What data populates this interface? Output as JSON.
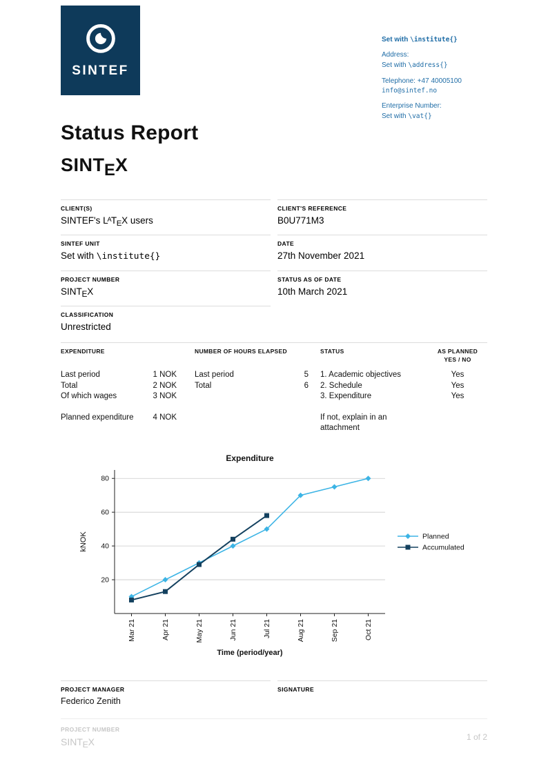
{
  "header": {
    "logo_text": "SINTEF",
    "contact": {
      "institute_pre": "Set with ",
      "institute_mono": "\\institute{}",
      "address_label": "Address:",
      "address_pre": "Set with ",
      "address_mono": "\\address{}",
      "telephone": "Telephone: +47  40005100",
      "email": "info@sintef.no",
      "enterprise_label": "Enterprise Number:",
      "vat_pre": "Set with ",
      "vat_mono": "\\vat{}"
    }
  },
  "title": "Status Report",
  "project_name": {
    "pre": "SINT",
    "dropped": "E",
    "post": "X"
  },
  "fields": {
    "clients_label": "CLIENT(S)",
    "clients_pre": "SINTEF's L",
    "clients_sup": "A",
    "clients_mid": "T",
    "clients_sub": "E",
    "clients_post": "X users",
    "client_ref_label": "CLIENT'S REFERENCE",
    "client_ref": "B0U771M3",
    "unit_label": "SINTEF UNIT",
    "unit_pre": "Set with ",
    "unit_mono": "\\institute{}",
    "date_label": "DATE",
    "date": "27th November 2021",
    "project_number_label": "PROJECT NUMBER",
    "status_date_label": "STATUS AS OF DATE",
    "status_date": "10th March 2021",
    "classification_label": "CLASSIFICATION",
    "classification": "Unrestricted"
  },
  "expenditure_table": {
    "col1_header": "EXPENDITURE",
    "col2_header": "NUMBER OF HOURS ELAPSED",
    "col3_header": "STATUS",
    "col4_header_1": "AS PLANNED",
    "col4_header_2": "YES / NO",
    "exp_rows": [
      {
        "label": "Last period",
        "value": "1 NOK"
      },
      {
        "label": "Total",
        "value": "2 NOK"
      },
      {
        "label": "Of which wages",
        "value": "3 NOK"
      }
    ],
    "planned_row": {
      "label": "Planned expenditure",
      "value": "4 NOK"
    },
    "hours_rows": [
      {
        "label": "Last period",
        "value": "5"
      },
      {
        "label": "Total",
        "value": "6"
      }
    ],
    "status_items": [
      "1. Academic objectives",
      "2. Schedule",
      "3. Expenditure"
    ],
    "status_note": "If not, explain in an attachment",
    "planned_values": [
      "Yes",
      "Yes",
      "Yes"
    ]
  },
  "chart_data": {
    "type": "line",
    "title": "Expenditure",
    "xlabel": "Time (period/year)",
    "ylabel": "kNOK",
    "categories": [
      "Mar 21",
      "Apr 21",
      "May 21",
      "Jun 21",
      "Jul 21",
      "Aug 21",
      "Sep 21",
      "Oct 21"
    ],
    "yticks": [
      20,
      40,
      60,
      80
    ],
    "ylim": [
      0,
      85
    ],
    "grid": true,
    "legend_position": "right",
    "series": [
      {
        "name": "Planned",
        "color": "#3cb4e5",
        "marker": "diamond",
        "values": [
          10,
          20,
          30,
          40,
          50,
          70,
          75,
          80
        ]
      },
      {
        "name": "Accumulated",
        "color": "#14415f",
        "marker": "square",
        "values": [
          8,
          13,
          29,
          44,
          58
        ]
      }
    ]
  },
  "signature": {
    "manager_label": "PROJECT MANAGER",
    "manager": "Federico Zenith",
    "signature_label": "SIGNATURE"
  },
  "footer": {
    "project_number_label": "PROJECT NUMBER",
    "page": "1 of 2"
  }
}
